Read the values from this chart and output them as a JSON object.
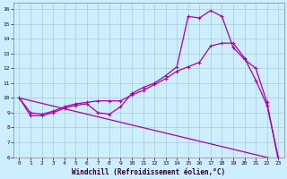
{
  "xlabel": "Windchill (Refroidissement éolien,°C)",
  "bg_color": "#cceeff",
  "line_color": "#aa00aa",
  "grid_color": "#aacccc",
  "xlim": [
    -0.5,
    23.5
  ],
  "ylim": [
    6,
    16.4
  ],
  "xticks": [
    0,
    1,
    2,
    3,
    4,
    5,
    6,
    7,
    8,
    9,
    10,
    11,
    12,
    13,
    14,
    15,
    16,
    17,
    18,
    19,
    20,
    21,
    22,
    23
  ],
  "yticks": [
    6,
    7,
    8,
    9,
    10,
    11,
    12,
    13,
    14,
    15,
    16
  ],
  "line1_x": [
    0,
    1,
    2,
    3,
    4,
    5,
    6,
    7,
    8,
    9,
    10,
    11,
    12,
    13,
    14,
    15,
    16,
    17,
    18,
    19,
    20,
    21,
    22,
    23
  ],
  "line1_y": [
    10.0,
    8.8,
    8.8,
    9.0,
    9.3,
    9.5,
    9.6,
    9.0,
    8.9,
    9.4,
    10.3,
    10.7,
    11.0,
    11.5,
    12.1,
    15.5,
    15.4,
    15.9,
    15.5,
    13.4,
    12.6,
    12.0,
    9.7,
    5.8
  ],
  "line2_x": [
    0,
    1,
    2,
    3,
    4,
    5,
    6,
    7,
    8,
    9,
    10,
    11,
    12,
    13,
    14,
    15,
    16,
    17,
    18,
    19,
    20,
    21,
    22,
    23
  ],
  "line2_y": [
    10.0,
    9.0,
    8.9,
    9.1,
    9.4,
    9.6,
    9.7,
    9.8,
    9.8,
    9.8,
    10.2,
    10.5,
    10.9,
    11.3,
    11.8,
    12.1,
    12.4,
    13.5,
    13.7,
    13.7,
    12.7,
    11.2,
    9.5,
    6.0
  ],
  "line3_x": [
    0,
    23
  ],
  "line3_y": [
    10.0,
    5.8
  ],
  "markersize": 2.0,
  "linewidth": 0.9
}
